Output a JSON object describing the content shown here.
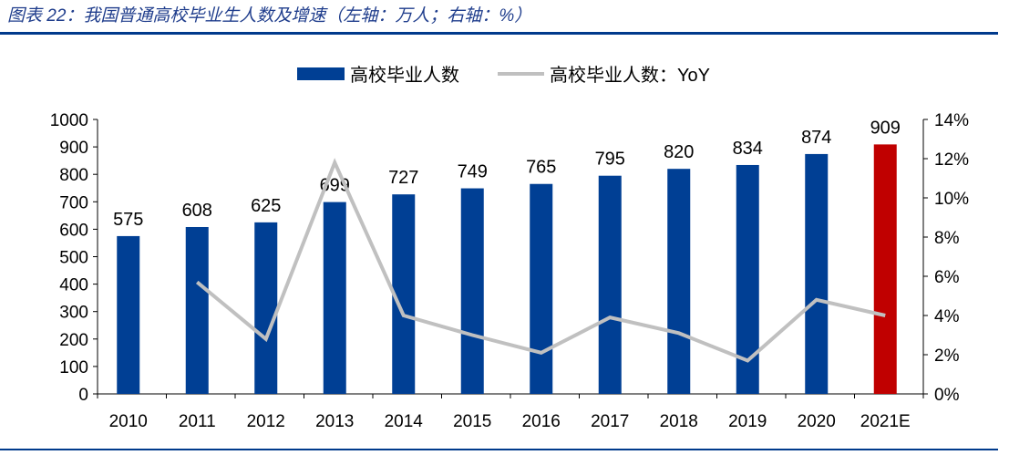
{
  "title": "图表 22：我国普通高校毕业生人数及增速（左轴：万人；右轴：%）",
  "chart_data": {
    "type": "bar+line",
    "categories": [
      "2010",
      "2011",
      "2012",
      "2013",
      "2014",
      "2015",
      "2016",
      "2017",
      "2018",
      "2019",
      "2020",
      "2021E"
    ],
    "series": [
      {
        "name": "高校毕业人数",
        "type": "bar",
        "axis": "left",
        "color": "#003f94",
        "highlight_color": "#c00000",
        "highlight_index": 11,
        "values": [
          575,
          608,
          625,
          699,
          727,
          749,
          765,
          795,
          820,
          834,
          874,
          909
        ]
      },
      {
        "name": "高校毕业人数：YoY",
        "type": "line",
        "axis": "right",
        "color": "#c0c0c0",
        "values": [
          null,
          5.7,
          2.8,
          11.8,
          4.0,
          3.0,
          2.1,
          3.9,
          3.1,
          1.7,
          4.8,
          4.0
        ]
      }
    ],
    "left_axis": {
      "ylim": [
        0,
        1000
      ],
      "ticks": [
        "0",
        "100",
        "200",
        "300",
        "400",
        "500",
        "600",
        "700",
        "800",
        "900",
        "1000"
      ]
    },
    "right_axis": {
      "ylim": [
        0,
        14
      ],
      "ticks": [
        "0%",
        "2%",
        "4%",
        "6%",
        "8%",
        "10%",
        "12%",
        "14%"
      ]
    },
    "legend_position": "top-center",
    "grid": false
  }
}
